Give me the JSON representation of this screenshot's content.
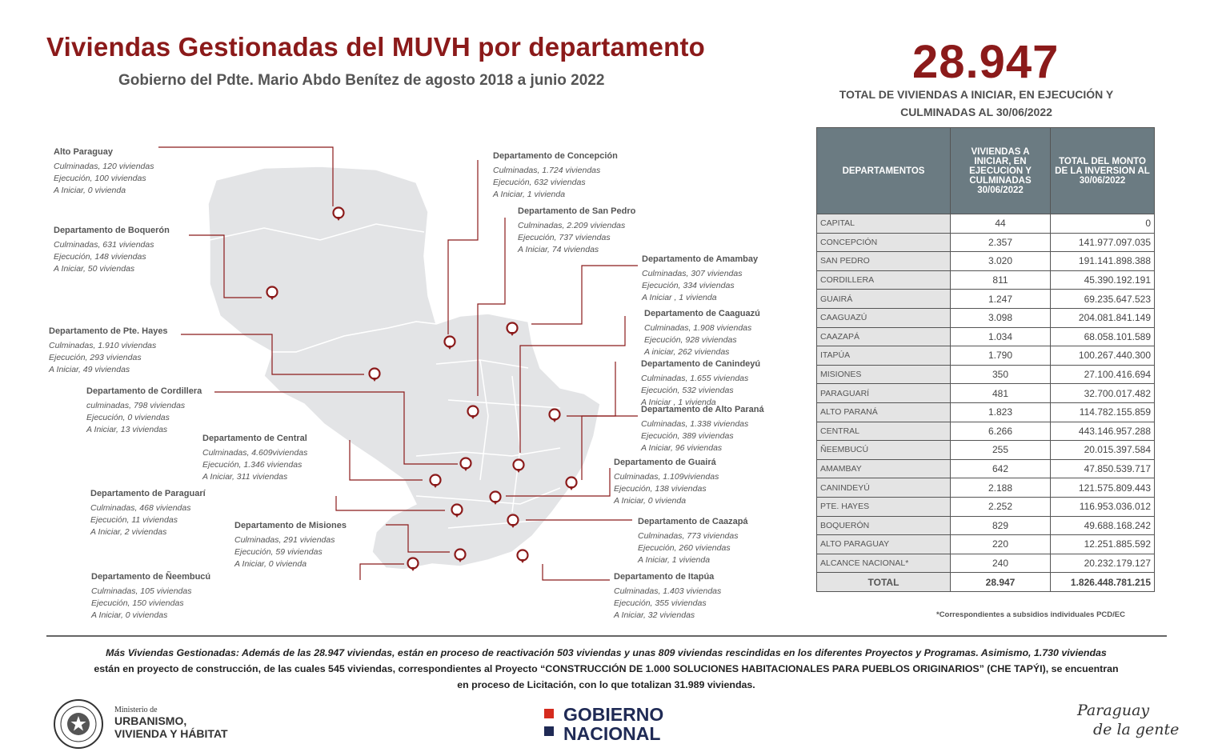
{
  "header": {
    "title": "Viviendas Gestionadas del MUVH por departamento",
    "subtitle": "Gobierno del Pdte. Mario Abdo Benítez de agosto 2018 a junio 2022"
  },
  "summary": {
    "total": "28.947",
    "desc_line1": "TOTAL DE VIVIENDAS A INICIAR, EN EJECUCIÓN Y",
    "desc_line2": "CULMINADAS  AL 30/06/2022"
  },
  "map_labels": [
    {
      "name": "Alto Paraguay",
      "lines": [
        "Culminadas, 120 viviendas",
        "Ejecución, 100 viviendas",
        "A Iniciar, 0 vivienda"
      ]
    },
    {
      "name": "Departamento de Boquerón",
      "lines": [
        "Culminadas, 631 viviendas",
        "Ejecución, 148 viviendas",
        "A Iniciar, 50 viviendas"
      ]
    },
    {
      "name": "Departamento de Pte. Hayes",
      "lines": [
        "Culminadas, 1.910 viviendas",
        "Ejecución, 293 viviendas",
        "A Iniciar, 49 viviendas"
      ]
    },
    {
      "name": "Departamento de Cordillera",
      "lines": [
        "culminadas, 798 viviendas",
        "Ejecución, 0 viviendas",
        "A Iniciar, 13 viviendas"
      ]
    },
    {
      "name": "Departamento de Central",
      "lines": [
        "Culminadas, 4.609viviendas",
        "Ejecución, 1.346 viviendas",
        "A Iniciar, 311 viviendas"
      ]
    },
    {
      "name": "Departamento de Paraguarí",
      "lines": [
        "Culminadas, 468  viviendas",
        "Ejecución, 11 viviendas",
        "A Iniciar, 2 viviendas"
      ]
    },
    {
      "name": "Departamento de Misiones",
      "lines": [
        "Culminadas, 291 viviendas",
        "Ejecución, 59 viviendas",
        "A Iniciar, 0 vivienda"
      ]
    },
    {
      "name": "Departamento de Ñeembucú",
      "lines": [
        "Culminadas, 105 viviendas",
        "Ejecución, 150 viviendas",
        "A Iniciar, 0 viviendas"
      ]
    },
    {
      "name": "Departamento de Concepción",
      "lines": [
        "Culminadas, 1.724 viviendas",
        "Ejecución, 632 viviendas",
        "A Iniciar, 1 vivienda"
      ]
    },
    {
      "name": "Departamento de San Pedro",
      "lines": [
        "Culminadas, 2.209 viviendas",
        "Ejecución, 737 viviendas",
        "A Iniciar, 74 viviendas"
      ]
    },
    {
      "name": "Departamento de Amambay",
      "lines": [
        "Culminadas, 307 viviendas",
        "Ejecución, 334 viviendas",
        "A Iniciar , 1 vivienda"
      ]
    },
    {
      "name": "Departamento de Caaguazú",
      "lines": [
        "Culminadas, 1.908 viviendas",
        "Ejecución, 928 viviendas",
        "A iniciar, 262 viviendas"
      ]
    },
    {
      "name": "Departamento de Canindeyú",
      "lines": [
        "Culminadas, 1.655 viviendas",
        "Ejecución, 532 viviendas",
        "A Iniciar , 1 vivienda"
      ]
    },
    {
      "name": "Departamento de Alto Paraná",
      "lines": [
        "Culminadas, 1.338 viviendas",
        "Ejecución, 389 viviendas",
        "A Iniciar, 96 viviendas"
      ]
    },
    {
      "name": "Departamento de Guairá",
      "lines": [
        "Culminadas, 1.109viviendas",
        "Ejecución, 138 viviendas",
        "A Iniciar, 0 vivienda"
      ]
    },
    {
      "name": "Departamento de Caazapá",
      "lines": [
        "Culminadas, 773 viviendas",
        "Ejecución, 260 viviendas",
        "A Iniciar, 1 vivienda"
      ]
    },
    {
      "name": "Departamento de Itapúa",
      "lines": [
        "Culminadas, 1.403 viviendas",
        "Ejecución, 355 viviendas",
        "A Iniciar, 32 viviendas"
      ]
    }
  ],
  "table": {
    "headers": [
      "DEPARTAMENTOS",
      "VIVIENDAS A INICIAR, EN EJECUCION Y CULMINADAS 30/06/2022",
      "TOTAL DEL MONTO DE LA INVERSION AL 30/06/2022"
    ],
    "rows": [
      [
        "CAPITAL",
        "44",
        "0"
      ],
      [
        "CONCEPCIÓN",
        "2.357",
        "141.977.097.035"
      ],
      [
        "SAN PEDRO",
        "3.020",
        "191.141.898.388"
      ],
      [
        "CORDILLERA",
        "811",
        "45.390.192.191"
      ],
      [
        "GUAIRÁ",
        "1.247",
        "69.235.647.523"
      ],
      [
        "CAAGUAZÚ",
        "3.098",
        "204.081.841.149"
      ],
      [
        "CAAZAPÁ",
        "1.034",
        "68.058.101.589"
      ],
      [
        "ITAPÚA",
        "1.790",
        "100.267.440.300"
      ],
      [
        "MISIONES",
        "350",
        "27.100.416.694"
      ],
      [
        "PARAGUARÍ",
        "481",
        "32.700.017.482"
      ],
      [
        "ALTO PARANÁ",
        "1.823",
        "114.782.155.859"
      ],
      [
        "CENTRAL",
        "6.266",
        "443.146.957.288"
      ],
      [
        "ÑEEMBUCÚ",
        "255",
        "20.015.397.584"
      ],
      [
        "AMAMBAY",
        "642",
        "47.850.539.717"
      ],
      [
        "CANINDEYÚ",
        "2.188",
        "121.575.809.443"
      ],
      [
        "PTE. HAYES",
        "2.252",
        "116.953.036.012"
      ],
      [
        "BOQUERÓN",
        "829",
        "49.688.168.242"
      ],
      [
        "ALTO PARAGUAY",
        "220",
        "12.251.885.592"
      ],
      [
        "ALCANCE NACIONAL*",
        "240",
        "20.232.179.127"
      ]
    ],
    "total": [
      "TOTAL",
      "28.947",
      "1.826.448.781.215"
    ],
    "footnote": "*Correspondientes  a subsidios individuales PCD/EC"
  },
  "note": {
    "line1": "Más Viviendas Gestionadas:  Además de las 28.947 viviendas, están en proceso de reactivación 503 viviendas y unas  809 viviendas rescindidas  en los diferentes Proyectos y Programas.  Asimismo, 1.730 viviendas",
    "line2": "están en proyecto de construcción, de las cuales 545 viviendas, correspondientes al Proyecto “CONSTRUCCIÓN DE 1.000 SOLUCIONES HABITACIONALES PARA PUEBLOS ORIGINARIOS” (CHE TAPÝI), se encuentran",
    "line3": "en proceso de Licitación, con lo que totalizan 31.989 viviendas."
  },
  "footer": {
    "ministry_small": "Ministerio de",
    "ministry_line1": "URBANISMO,",
    "ministry_line2": "VIVIENDA Y HÁBITAT",
    "gob_line1": "GOBIERNO",
    "gob_line2": "NACIONAL",
    "slogan_line1": "Paraguay",
    "slogan_line2": "de la gente"
  },
  "colors": {
    "accent": "#8b1a1a",
    "map_fill": "#e3e4e6",
    "table_header": "#6b7b82",
    "gob_red": "#d52b1e",
    "gob_blue": "#1f2a55"
  }
}
